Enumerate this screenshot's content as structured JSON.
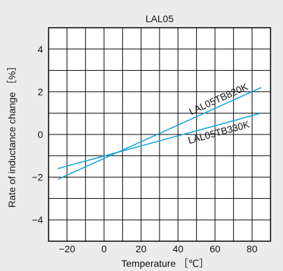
{
  "chart_data": {
    "type": "line",
    "title": "LAL05",
    "xlabel": "Temperature ［℃］",
    "ylabel": "Rate of inductance change ［%］",
    "xlim": [
      -30,
      90
    ],
    "ylim": [
      -5,
      5
    ],
    "x_ticks": [
      -20,
      0,
      20,
      40,
      60,
      80
    ],
    "x_tick_labels": [
      "−20",
      "0",
      "20",
      "40",
      "60",
      "80"
    ],
    "y_ticks": [
      -4,
      -2,
      0,
      2,
      4
    ],
    "y_tick_labels": [
      "−4",
      "−2",
      "0",
      "2",
      "4"
    ],
    "grid": true,
    "line_color": "#1aa3d9",
    "series": [
      {
        "name": "LAL05TB820K",
        "x": [
          -25,
          85
        ],
        "y": [
          -2.1,
          2.2
        ]
      },
      {
        "name": "LAL05TB330K",
        "x": [
          -25,
          85
        ],
        "y": [
          -1.6,
          1.0
        ]
      }
    ]
  }
}
